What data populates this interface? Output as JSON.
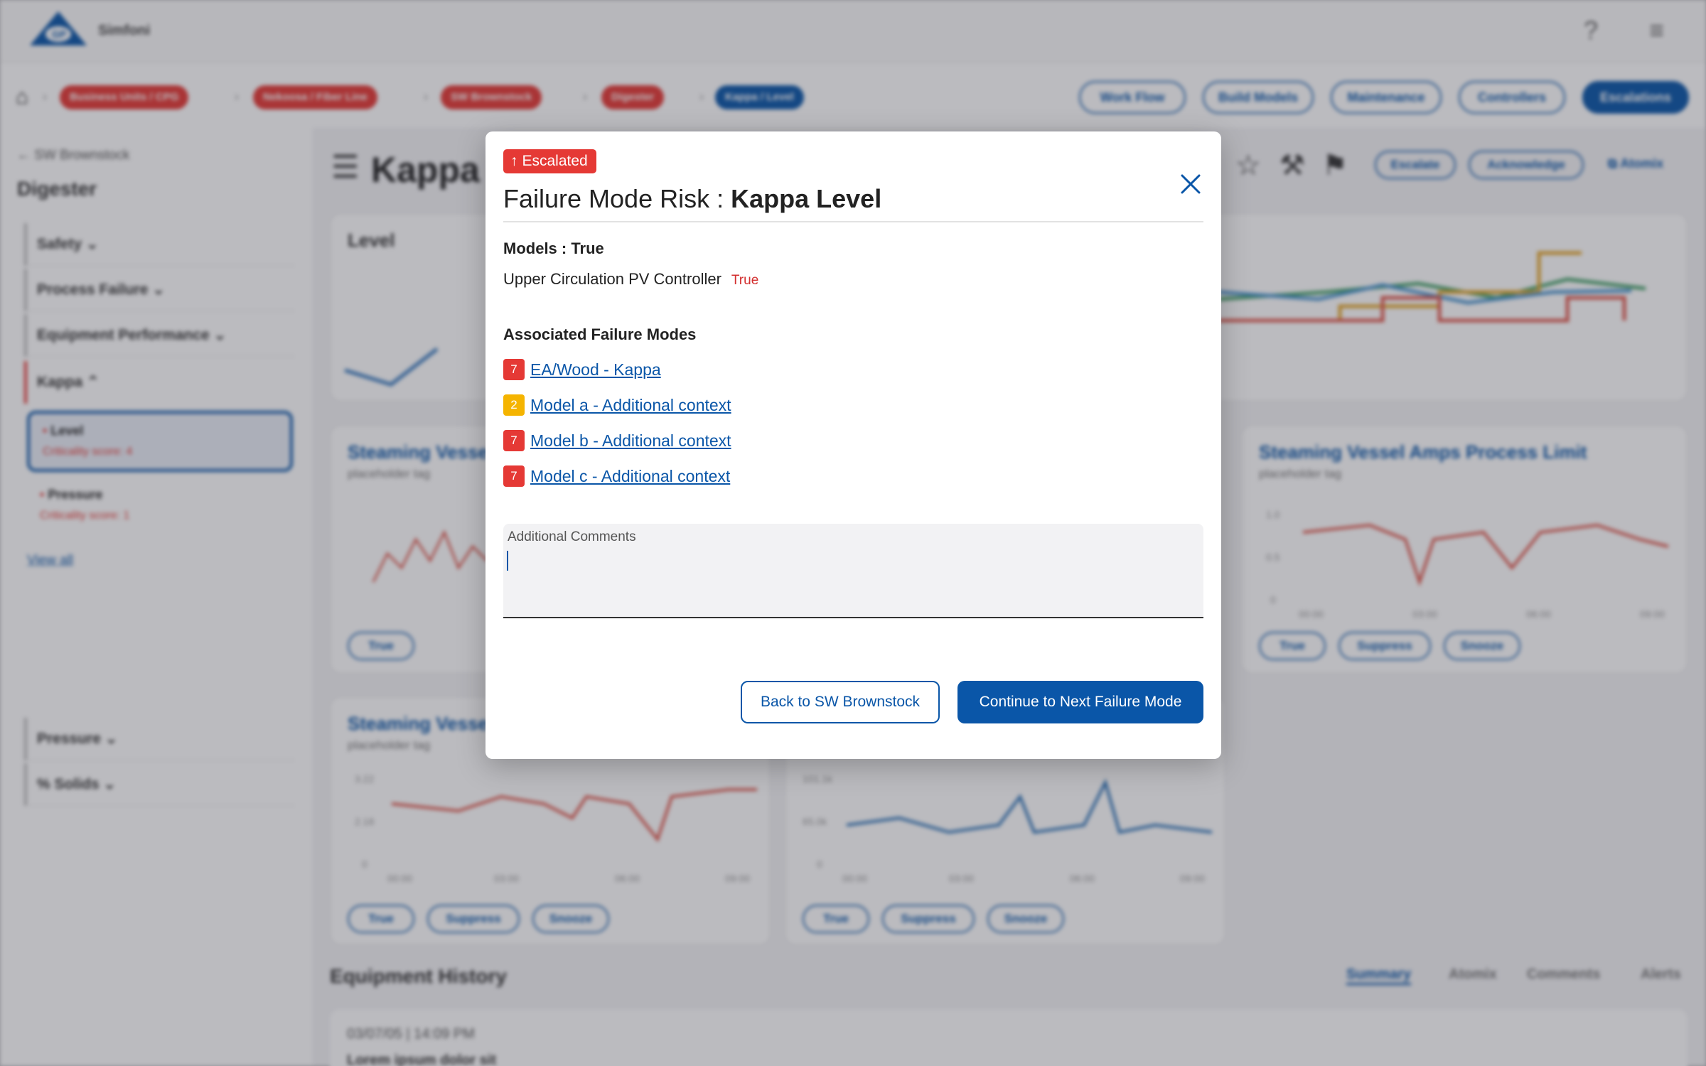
{
  "app": {
    "name": "Simfoni",
    "breadcrumbs": [
      "Business Units / CPG",
      "Nekoosa / Fiber Line",
      "SW Brownstock",
      "Digester",
      "Kappa / Level"
    ],
    "nav_buttons": [
      "Work Flow",
      "Build Models",
      "Maintenance",
      "Controllers",
      "Escalations"
    ]
  },
  "sidebar": {
    "back_label": "SW Brownstock",
    "title": "Digester",
    "items": [
      "Safety",
      "Process Failure",
      "Equipment Performance",
      "Kappa",
      "Pressure",
      "% Solids"
    ],
    "kappa_cards": [
      {
        "label": "Level",
        "score": "Criticality score: 4"
      },
      {
        "label": "Pressure",
        "score": "Criticality score: 1"
      }
    ],
    "view_all": "View all"
  },
  "main": {
    "title": "Kappa",
    "actions": [
      "Escalate",
      "Acknowledge"
    ],
    "atomix_link": "Atomix",
    "level_card_title": "Level",
    "cards": [
      {
        "title": "Steaming Vessel",
        "sub": "placeholder tag"
      },
      {
        "title": "Steaming Vessel Amps Process Limit",
        "sub": "placeholder tag",
        "y_ticks": [
          "1.0",
          "0.5",
          "0"
        ],
        "x_ticks": [
          "00:00",
          "03:00",
          "06:00",
          "09:00"
        ]
      },
      {
        "title": "Steaming Vessel",
        "sub": "placeholder tag",
        "y_ticks": [
          "3.22",
          "2.18",
          "0"
        ],
        "x_ticks": [
          "00:00",
          "03:00",
          "06:00",
          "09:00"
        ]
      },
      {
        "y_ticks": [
          "101.1k",
          "65.0k",
          "0"
        ],
        "x_ticks": [
          "00:00",
          "03:00",
          "06:00",
          "09:00"
        ]
      }
    ],
    "card_buttons": [
      "True",
      "Suppress",
      "Snooze"
    ],
    "history_title": "Equipment History",
    "history_tabs": [
      "Summary",
      "Atomix",
      "Comments",
      "Alerts"
    ],
    "history_entry": {
      "date": "03/07/05 | 14:09 PM",
      "text": "Lorem ipsum dolor sit"
    }
  },
  "modal": {
    "badge": "Escalated",
    "title_prefix": "Failure Mode Risk : ",
    "title_bold": "Kappa Level",
    "models_label": "Models : True",
    "model_name": "Upper Circulation PV Controller",
    "model_status": "True",
    "failure_modes_label": "Associated Failure Modes",
    "failure_modes": [
      {
        "score": "7",
        "label": "EA/Wood - Kappa",
        "color": "#e53935"
      },
      {
        "score": "2",
        "label": "Model a - Additional context",
        "color": "#f5b400"
      },
      {
        "score": "7",
        "label": "Model b - Additional context",
        "color": "#e53935"
      },
      {
        "score": "7",
        "label": "Model c - Additional context",
        "color": "#e53935"
      }
    ],
    "comments_label": "Additional Comments",
    "comments_value": "",
    "back_button": "Back to SW Brownstock",
    "next_button": "Continue to Next Failure Mode"
  },
  "colors": {
    "brand_blue": "#0a56a8",
    "escalated_red": "#e53935",
    "warning_amber": "#f5b400"
  }
}
